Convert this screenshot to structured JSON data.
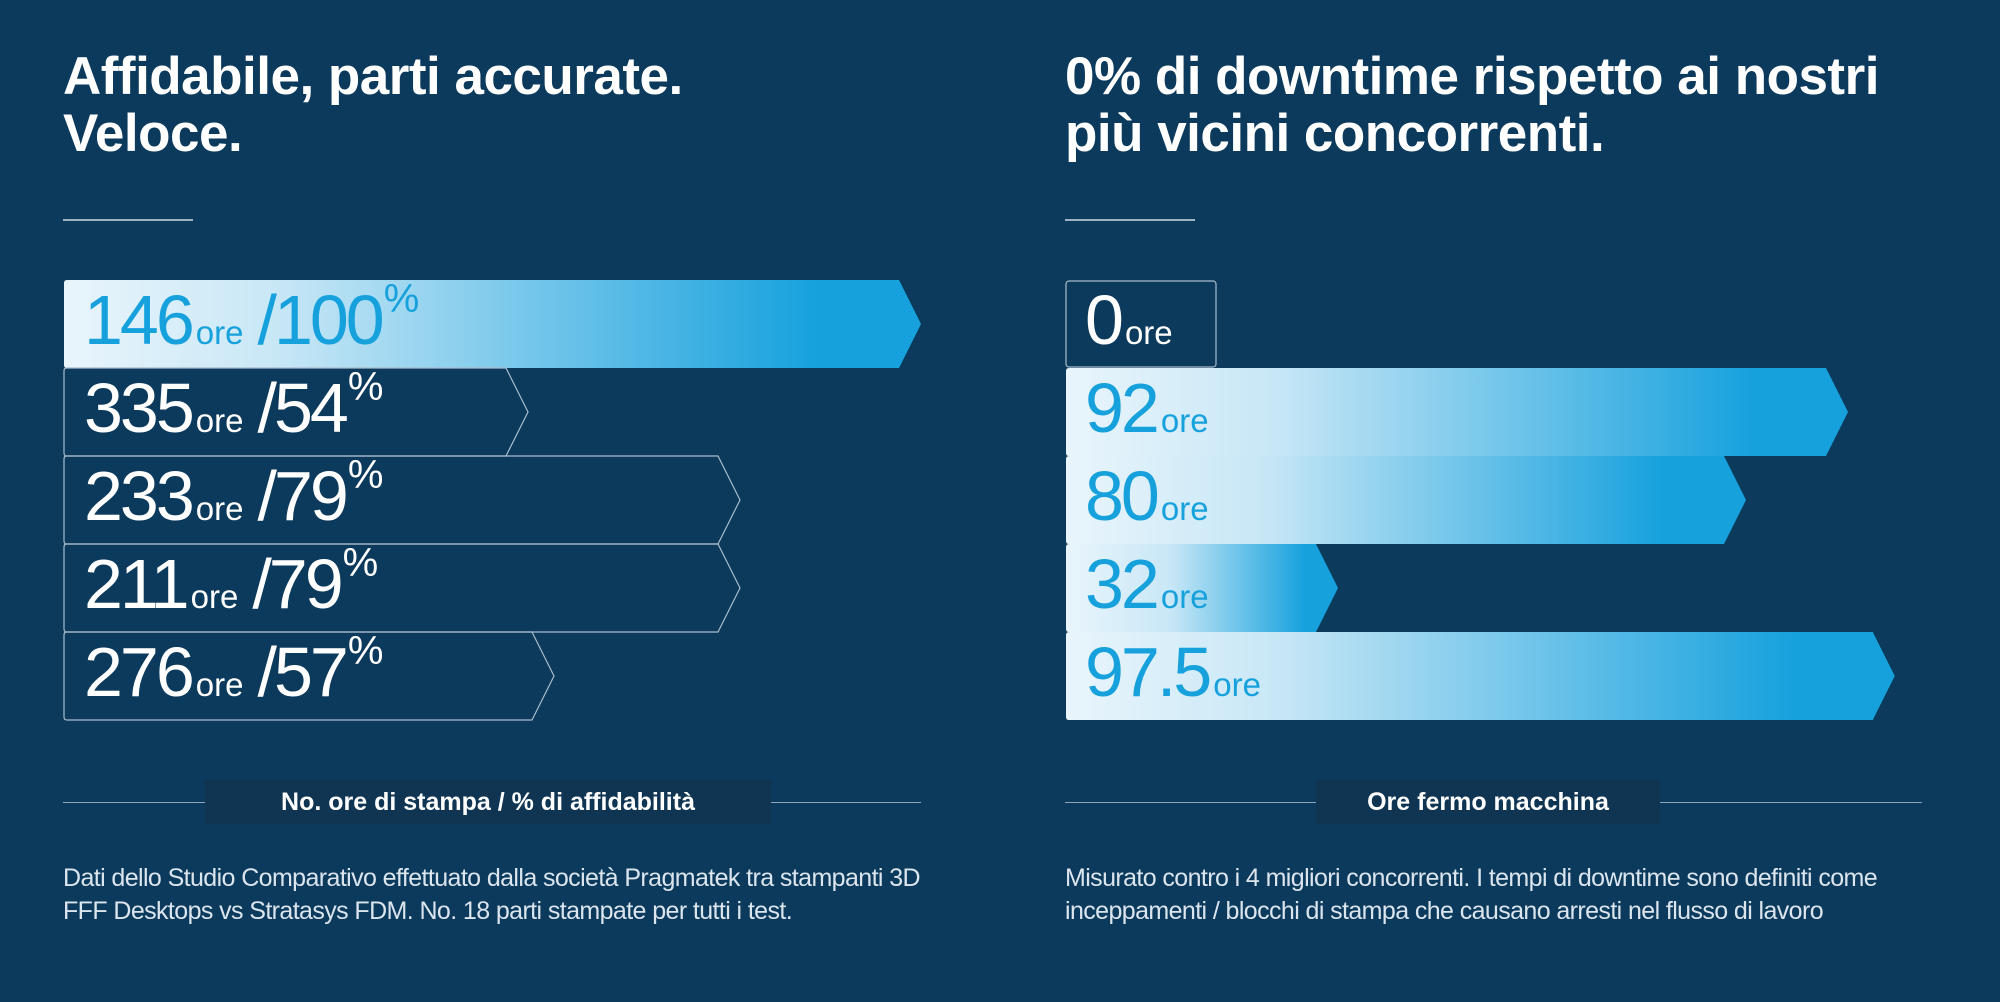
{
  "colors": {
    "background": "#0c3a5c",
    "accent": "#16a1dd",
    "bar_light": "#e9f5fc",
    "outline": "#a9bccb",
    "text_white": "#ffffff"
  },
  "left": {
    "title_lines": [
      "Affidabile, parti accurate.",
      "Veloce."
    ],
    "caption": "No. ore di stampa / % di affidabilità",
    "note_lines": [
      "Dati dello Studio Comparativo effettuato dalla società Pragmatek tra stampanti 3D",
      "FFF Desktops vs Stratasys FDM. No. 18 parti stampate per tutti i test."
    ]
  },
  "right": {
    "title_lines": [
      "0% di downtime rispetto ai nostri",
      "più vicini concorrenti."
    ],
    "caption": "Ore fermo macchina",
    "note_lines": [
      "Misurato contro i 4 migliori concorrenti. I tempi di downtime sono definiti come",
      "inceppamenti / blocchi di stampa che causano arresti nel flusso di lavoro"
    ]
  },
  "chart_data": [
    {
      "type": "bar",
      "orientation": "horizontal",
      "title": "Affidabile, parti accurate. Veloce.",
      "xlabel": "No. ore di stampa / % di affidabilità",
      "unit_label": "ore",
      "series": [
        {
          "name": "ore di stampa",
          "values": [
            146,
            335,
            233,
            211,
            276
          ]
        },
        {
          "name": "% di affidabilità",
          "values": [
            100,
            54,
            79,
            79,
            57
          ]
        }
      ],
      "value_labels": [
        "146",
        "335",
        "233",
        "211",
        "276"
      ],
      "percent_labels": [
        "100",
        "54",
        "79",
        "79",
        "57"
      ],
      "highlighted_index": 0,
      "bar_scale_series": "% di affidabilità",
      "xlim": [
        0,
        100
      ]
    },
    {
      "type": "bar",
      "orientation": "horizontal",
      "title": "0% di downtime rispetto ai nostri più vicini concorrenti.",
      "xlabel": "Ore fermo macchina",
      "unit_label": "ore",
      "series": [
        {
          "name": "Ore fermo macchina",
          "values": [
            0,
            92,
            80,
            32,
            97.5
          ]
        }
      ],
      "value_labels": [
        "0",
        "92",
        "80",
        "32",
        "97.5"
      ],
      "outlined_index": 0,
      "xlim": [
        0,
        100
      ]
    }
  ]
}
